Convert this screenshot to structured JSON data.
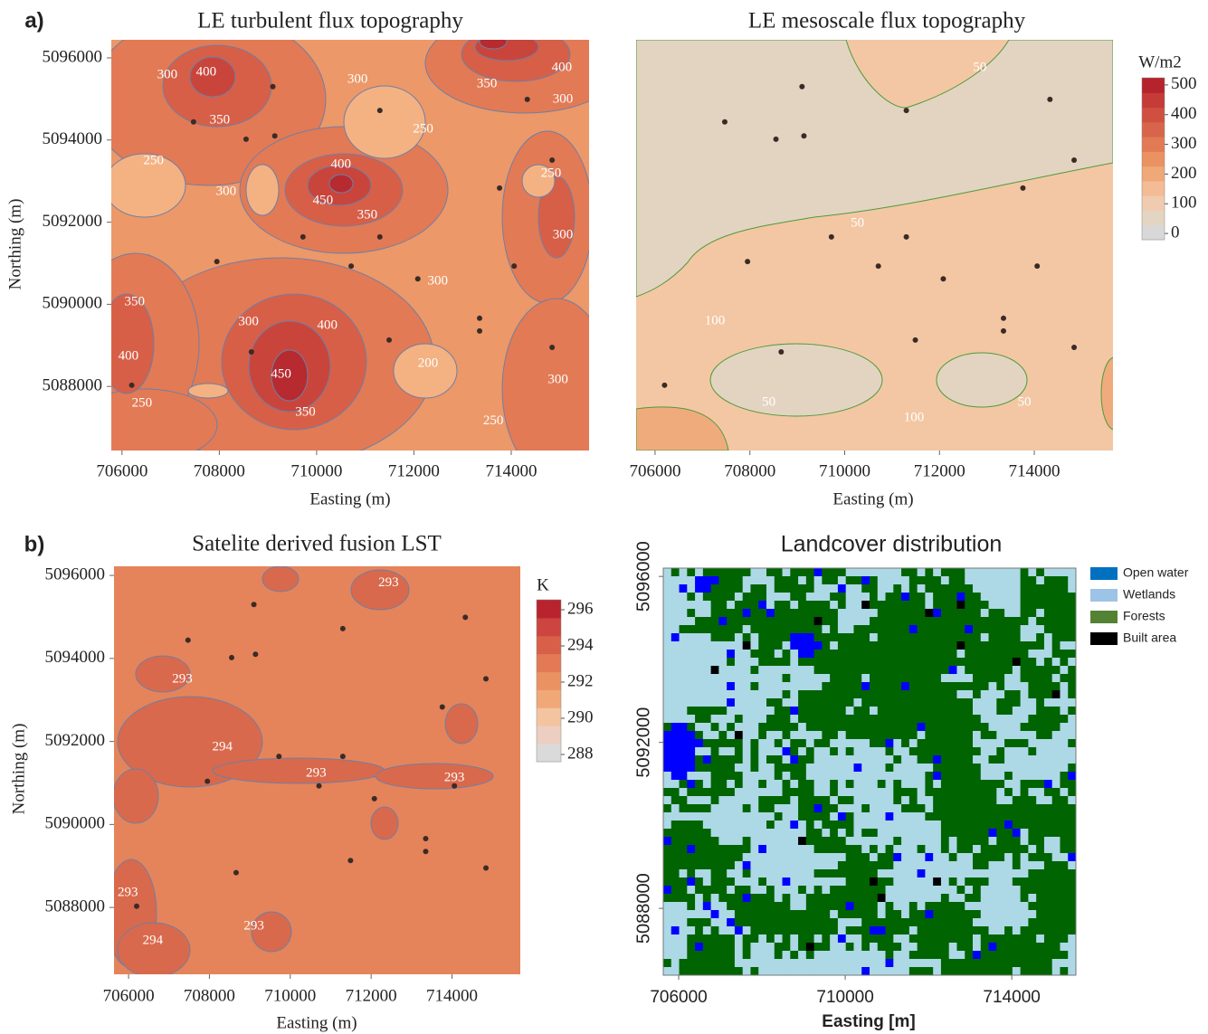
{
  "chart_data": [
    {
      "type": "contour",
      "panel_label": "a)",
      "title": "LE turbulent flux topography",
      "x_label": "Easting (m)",
      "y_label": "Northing (m)",
      "xlim": [
        705780,
        715600
      ],
      "ylim": [
        5086440,
        5096440
      ],
      "xticks": [
        706000,
        708000,
        710000,
        712000,
        714000
      ],
      "yticks": [
        5088000,
        5090000,
        5092000,
        5094000,
        5096000
      ],
      "contour_labels": {
        "x": [
          706930,
          707730,
          708010,
          710840,
          713500,
          715040,
          715060,
          706650,
          708140,
          710500,
          710130,
          711040,
          712190,
          714820,
          715060,
          712490,
          706260,
          706130,
          708600,
          710220,
          709270,
          709770,
          706410,
          712290,
          713630,
          714960
        ],
        "y": [
          5095580,
          5095650,
          5094480,
          5095470,
          5095360,
          5095760,
          5094980,
          5093490,
          5092740,
          5093400,
          5092520,
          5092170,
          5094260,
          5093180,
          5091680,
          5090560,
          5090050,
          5088730,
          5089570,
          5089480,
          5088290,
          5087360,
          5087580,
          5088550,
          5087150,
          5088160
        ],
        "values": [
          300,
          400,
          350,
          300,
          350,
          400,
          300,
          250,
          300,
          400,
          450,
          350,
          250,
          250,
          300,
          300,
          350,
          400,
          300,
          400,
          450,
          350,
          250,
          200,
          250,
          300
        ]
      }
    },
    {
      "type": "contour",
      "title": "LE mesoscale flux topography",
      "x_label": "Easting (m)",
      "xlim": [
        705600,
        715660
      ],
      "ylim": [
        5086440,
        5096440
      ],
      "xticks": [
        706000,
        708000,
        710000,
        712000,
        714000
      ],
      "contour_labels": {
        "x": [
          712850,
          710270,
          707260,
          708400,
          711460,
          713790
        ],
        "y": [
          5095760,
          5091970,
          5089590,
          5087610,
          5087230,
          5087610
        ],
        "values": [
          50,
          50,
          100,
          50,
          100,
          50
        ]
      },
      "colorbar": {
        "label": "W/m2",
        "lim": [
          -21,
          524
        ],
        "ticks": [
          0,
          100,
          200,
          300,
          400,
          500
        ],
        "colors": [
          "#d8d8d8",
          "#e4d5c3",
          "#f1cbb0",
          "#f3bc95",
          "#f0a878",
          "#ea9262",
          "#e27a55",
          "#d8654b",
          "#cf5041",
          "#c43b37",
          "#b5232c"
        ]
      }
    },
    {
      "type": "contour",
      "panel_label": "b)",
      "title": "Satelite derived fusion LST",
      "x_label": "Easting (m)",
      "y_label": "Northing (m)",
      "xlim": [
        705640,
        715690
      ],
      "ylim": [
        5086390,
        5096220
      ],
      "xticks": [
        706000,
        708000,
        710000,
        712000,
        714000
      ],
      "yticks": [
        5088000,
        5090000,
        5092000,
        5094000,
        5096000
      ],
      "contour_labels": {
        "x": [
          712430,
          707330,
          708320,
          710640,
          714060,
          705980,
          706600,
          709100
        ],
        "y": [
          5095810,
          5093490,
          5091860,
          5091230,
          5091120,
          5088350,
          5087190,
          5087540
        ],
        "values": [
          293,
          293,
          294,
          293,
          293,
          293,
          294,
          293
        ]
      },
      "colorbar": {
        "label": "K",
        "lim": [
          287.6,
          296.55
        ],
        "ticks": [
          288,
          290,
          292,
          294,
          296
        ],
        "colors": [
          "#dadada",
          "#eccfc0",
          "#f3c4a0",
          "#f0a878",
          "#ea9262",
          "#e27a55",
          "#d86049",
          "#cc4540",
          "#b8232d"
        ]
      }
    },
    {
      "type": "raster",
      "title": "Landcover distribution",
      "x_label": "Easting [m]",
      "xlim": [
        705630,
        715540
      ],
      "ylim": [
        5086390,
        5096200
      ],
      "xticks": [
        706000,
        710000,
        714000
      ],
      "yticks": [
        5088000,
        5092000,
        5096000
      ],
      "class_colors": [
        "#0000ff",
        "#add8e6",
        "#006400",
        "#000000"
      ],
      "legend": {
        "labels": [
          "Open water",
          "Wetlands",
          "Forests",
          "Built area"
        ],
        "colors": [
          "#0070c0",
          "#9dc3e6",
          "#548235",
          "#000000"
        ]
      }
    }
  ],
  "stations": {
    "x": [
      709100,
      707470,
      708550,
      709140,
      711300,
      714330,
      714840,
      713760,
      709720,
      711300,
      707950,
      710710,
      714060,
      712080,
      713350,
      713350,
      711490,
      708660,
      714840,
      706200
    ],
    "y": [
      5095300,
      5094440,
      5094020,
      5094100,
      5094720,
      5094990,
      5093510,
      5092830,
      5091640,
      5091640,
      5091040,
      5090930,
      5090930,
      5090620,
      5089660,
      5089350,
      5089130,
      5088840,
      5088950,
      5088030
    ]
  }
}
